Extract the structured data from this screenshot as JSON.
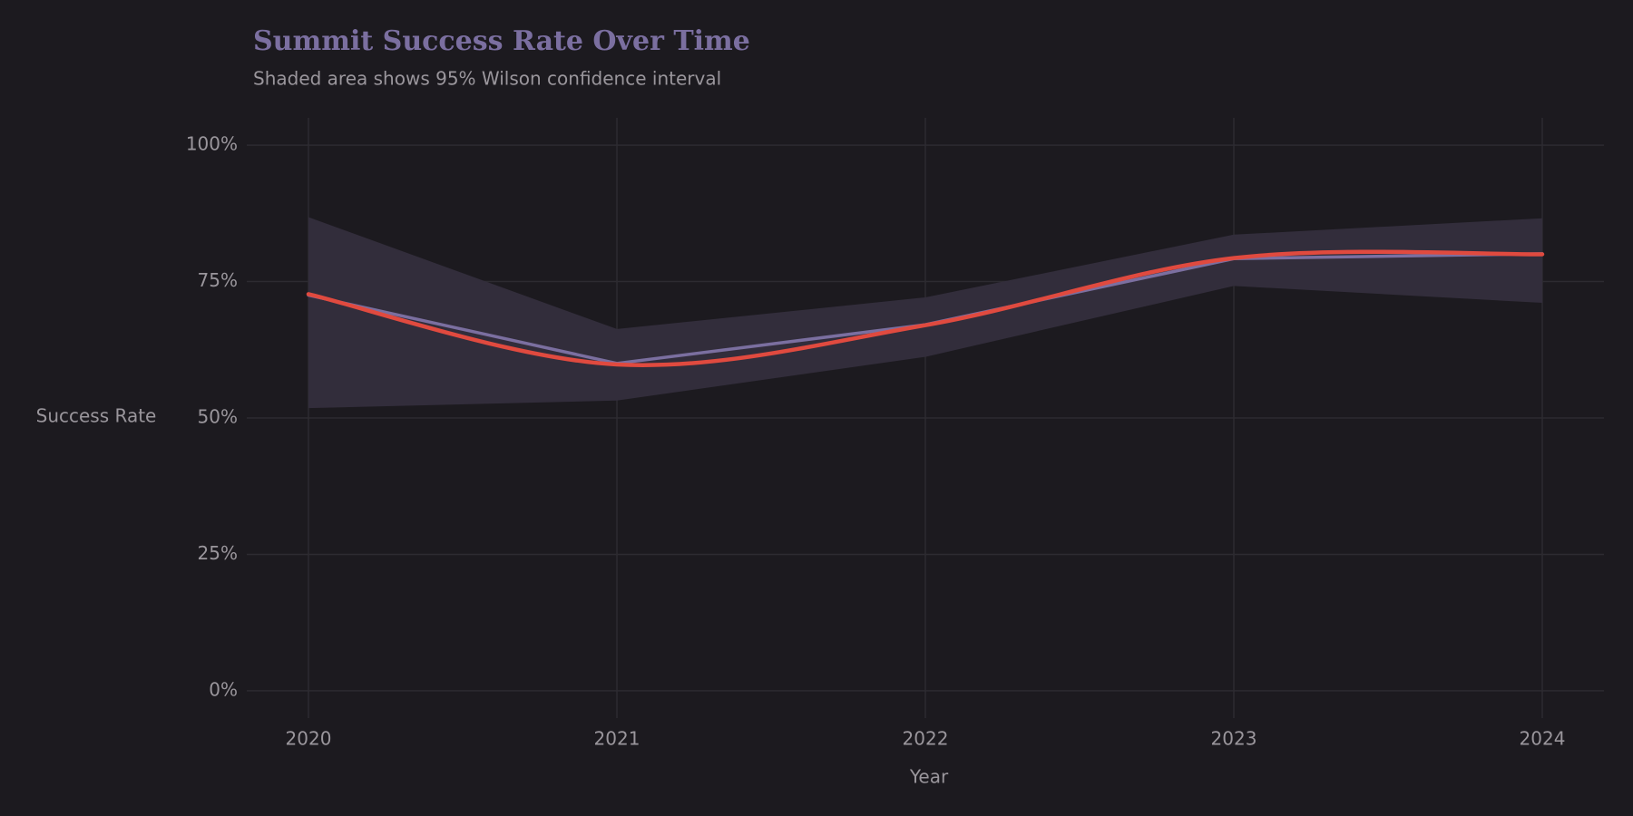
{
  "chart_data": {
    "type": "line",
    "title": "Summit Success Rate Over Time",
    "subtitle": "Shaded area shows 95% Wilson confidence interval",
    "x_label": "Year",
    "y_label": "Success Rate",
    "x": [
      2020,
      2021,
      2022,
      2023,
      2024
    ],
    "series": [
      {
        "color": "#7b6fa0",
        "values": [
          72.5,
          60.0,
          67.1,
          79.2,
          80.1
        ]
      },
      {
        "color": "#e04a3f",
        "smooth": true,
        "values": [
          72.7,
          59.8,
          67.0,
          79.3,
          80.0
        ]
      }
    ],
    "ci_lower": [
      51.8,
      53.2,
      61.2,
      74.2,
      71.1
    ],
    "ci_upper": [
      86.8,
      66.3,
      72.1,
      83.6,
      86.6
    ],
    "ci_color": "#322d3b",
    "xlim": [
      2019.8,
      2024.2
    ],
    "xticks": [
      2020,
      2021,
      2022,
      2023,
      2024
    ],
    "ylim": [
      -5,
      105
    ],
    "yticks": [
      {
        "value": 0,
        "label": "0%"
      },
      {
        "value": 25,
        "label": "25%"
      },
      {
        "value": 50,
        "label": "50%"
      },
      {
        "value": 75,
        "label": "75%"
      },
      {
        "value": 100,
        "label": "100%"
      }
    ],
    "grid": true
  }
}
